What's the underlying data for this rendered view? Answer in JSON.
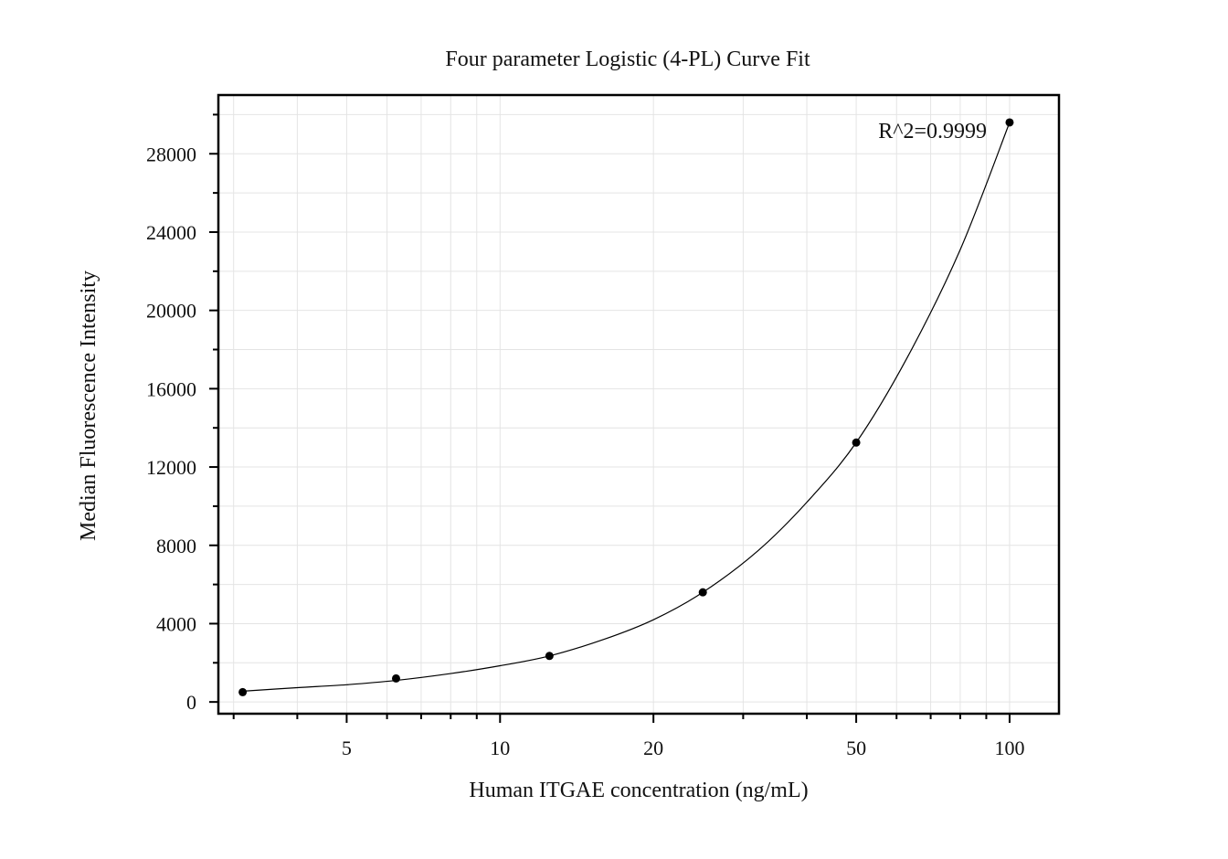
{
  "chart_data": {
    "type": "scatter",
    "title": "Four parameter Logistic (4-PL) Curve Fit",
    "xlabel": "Human ITGAE concentration (ng/mL)",
    "ylabel": "Median Fluorescence Intensity",
    "x_scale": "log",
    "xlim": [
      2.8,
      125
    ],
    "ylim": [
      -600,
      31000
    ],
    "x_ticks": [
      5,
      10,
      20,
      50,
      100
    ],
    "x_tick_labels": [
      "5",
      "10",
      "20",
      "50",
      "100"
    ],
    "y_ticks": [
      0,
      4000,
      8000,
      12000,
      16000,
      20000,
      24000,
      28000
    ],
    "y_tick_labels": [
      "0",
      "4000",
      "8000",
      "12000",
      "16000",
      "20000",
      "24000",
      "28000"
    ],
    "grid": true,
    "annotation": "R^2=0.9999",
    "series": [
      {
        "kind": "points",
        "x": [
          3.125,
          6.25,
          12.5,
          25,
          50,
          100
        ],
        "y": [
          500,
          1200,
          2350,
          5600,
          13250,
          29600
        ],
        "color": "#000000"
      },
      {
        "kind": "fit-curve",
        "x": [
          3.125,
          4,
          5,
          6.25,
          8,
          10,
          12.5,
          16,
          20,
          25,
          32,
          40,
          50,
          63,
          80,
          100
        ],
        "y": [
          550,
          730,
          880,
          1100,
          1450,
          1850,
          2350,
          3200,
          4200,
          5600,
          7700,
          10200,
          13250,
          17600,
          23100,
          29600
        ],
        "color": "#000000"
      }
    ]
  }
}
